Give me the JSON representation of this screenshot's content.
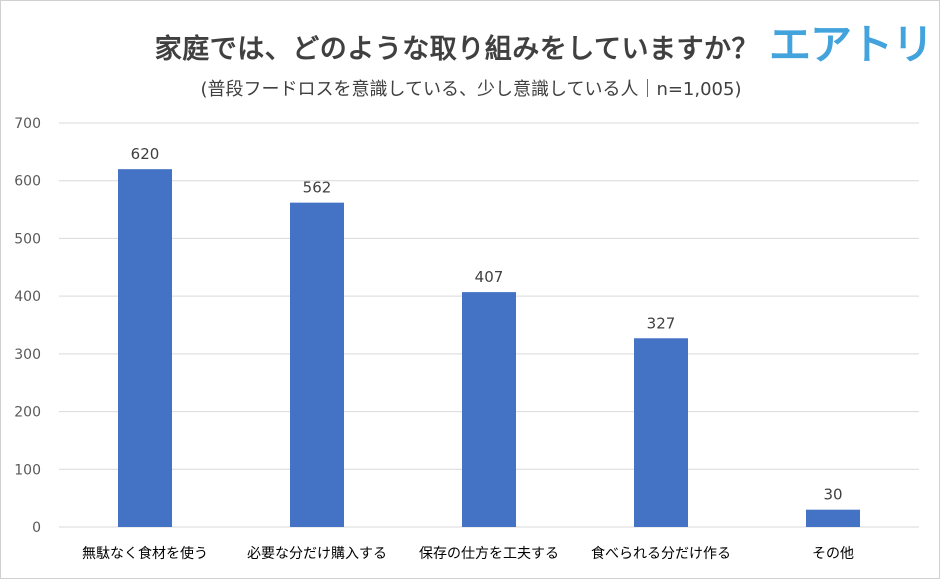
{
  "brand": {
    "logo_text": "エアトリ",
    "logo_color": "#43a3dc"
  },
  "chart_data": {
    "type": "bar",
    "title": "家庭では、どのような取り組みをしていますか？",
    "subtitle": "(普段フードロスを意識している、少し意識している人｜n=1,005)",
    "categories": [
      "無駄なく食材を使う",
      "必要な分だけ購入する",
      "保存の仕方を工夫する",
      "食べられる分だけ作る",
      "その他"
    ],
    "values": [
      620,
      562,
      407,
      327,
      30
    ],
    "data_labels": [
      "620",
      "562",
      "407",
      "327",
      "30"
    ],
    "ylim": [
      0,
      700
    ],
    "yticks": [
      0,
      100,
      200,
      300,
      400,
      500,
      600,
      700
    ],
    "grid": true,
    "bar_color": "#4472c4",
    "xlabel": "",
    "ylabel": ""
  }
}
